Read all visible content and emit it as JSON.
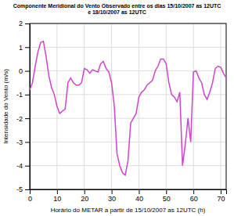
{
  "chart_data": {
    "type": "line",
    "title": "Componente Meridional do Vento Observado entre os dias 15/10/2007 as 12UTC\ne 18/10/2007 as 12UTC",
    "xlabel": "Horário do METAR a partir de 15/10/2007 as 12UTC (h)",
    "ylabel": "Intensidade do Vento (m/s)",
    "x": [
      0,
      1,
      2,
      3,
      4,
      5,
      6,
      7,
      8,
      9,
      10,
      11,
      12,
      13,
      14,
      15,
      16,
      17,
      18,
      19,
      20,
      21,
      22,
      23,
      24,
      25,
      26,
      27,
      28,
      29,
      30,
      31,
      32,
      33,
      34,
      35,
      36,
      37,
      38,
      39,
      40,
      41,
      42,
      43,
      44,
      45,
      46,
      47,
      48,
      49,
      50,
      51,
      52,
      53,
      54,
      55,
      56,
      57,
      58,
      59,
      60,
      61,
      62,
      63,
      64,
      65,
      66,
      67,
      68,
      69,
      70,
      71,
      72
    ],
    "values": [
      -0.8,
      -0.5,
      0.2,
      0.8,
      1.2,
      1.25,
      0.6,
      -0.2,
      -0.7,
      -1.0,
      -1.5,
      -1.8,
      -1.7,
      -1.6,
      -0.5,
      -0.3,
      -0.5,
      -0.6,
      -0.6,
      -0.5,
      0.1,
      0.05,
      -0.1,
      0.05,
      0.0,
      -0.05,
      0.3,
      0.4,
      0.1,
      -0.05,
      -0.5,
      -1.5,
      -3.5,
      -4.0,
      -4.3,
      -4.4,
      -3.8,
      -2.2,
      -2.0,
      -1.8,
      -1.1,
      -0.9,
      -0.8,
      -0.6,
      -0.5,
      -0.4,
      0.0,
      0.2,
      0.5,
      0.5,
      0.3,
      -0.5,
      -1.0,
      -1.1,
      -1.3,
      -0.9,
      -4.0,
      -3.1,
      -2.0,
      -3.0,
      -0.05,
      0.0,
      -0.3,
      -0.5,
      -1.0,
      -1.2,
      -0.9,
      -0.5,
      0.1,
      0.2,
      0.15,
      -0.1,
      -0.3
    ],
    "color": "#cc44cc",
    "xlim": [
      0,
      72
    ],
    "ylim": [
      -5,
      2
    ],
    "xticks": [
      0,
      10,
      20,
      30,
      40,
      50,
      60,
      70
    ],
    "yticks": [
      -5,
      -4,
      -3,
      -2,
      -1,
      0,
      1,
      2
    ],
    "grid": true
  }
}
